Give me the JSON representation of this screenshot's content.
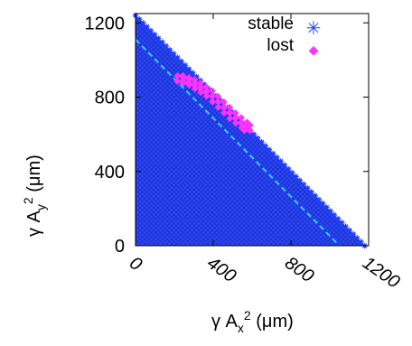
{
  "chart_data": {
    "type": "scatter",
    "title": "",
    "xlabel": {
      "pre": "γ A",
      "sub": "x",
      "sup": "2",
      "post": " (μm)"
    },
    "ylabel": {
      "pre": "γ A",
      "sub": "y",
      "sup": "2",
      "post": " (μm)"
    },
    "xlim": [
      0,
      1200
    ],
    "ylim": [
      0,
      1250
    ],
    "xticks": [
      "0",
      "400",
      "800",
      "1200"
    ],
    "xtick_values": [
      0,
      400,
      800,
      1200
    ],
    "yticks": [
      "0",
      "400",
      "800",
      "1200"
    ],
    "ytick_values": [
      0,
      400,
      800,
      1200
    ],
    "grid": false,
    "legend_position": "top-right",
    "series": [
      {
        "name": "stable",
        "marker": "asterisk",
        "color": "#1f3fff",
        "region": "triangle",
        "boundary": {
          "x_intercept": 1180,
          "y_intercept": 1240
        }
      },
      {
        "name": "lost",
        "marker": "diamond",
        "color": "#ff33ff",
        "region": "band",
        "points": [
          [
            230,
            900
          ],
          [
            260,
            890
          ],
          [
            290,
            880
          ],
          [
            320,
            860
          ],
          [
            350,
            840
          ],
          [
            380,
            820
          ],
          [
            410,
            790
          ],
          [
            440,
            760
          ],
          [
            470,
            730
          ],
          [
            500,
            700
          ],
          [
            530,
            675
          ],
          [
            560,
            650
          ],
          [
            575,
            635
          ]
        ]
      }
    ],
    "annotations": [
      {
        "type": "dashed-line",
        "color": "#33ccee",
        "from": [
          0,
          1110
        ],
        "to": [
          1050,
          0
        ]
      }
    ]
  }
}
